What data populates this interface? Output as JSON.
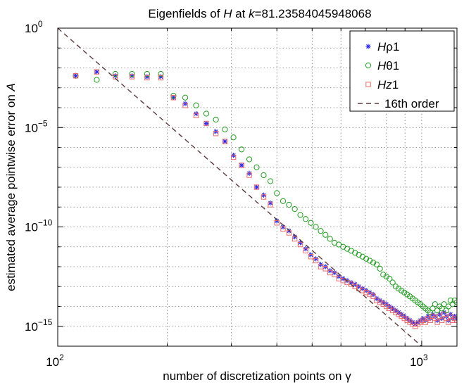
{
  "chart_data": {
    "type": "scatter",
    "title": "Eigenfields of H at k=81.23584045948068",
    "xlabel": "number of discretization points on γ",
    "ylabel": "estimated average pointwise error on A",
    "xscale": "log",
    "yscale": "log",
    "xlim": [
      100,
      1250
    ],
    "ylim": [
      1e-16,
      1
    ],
    "grid": true,
    "x_ticks": [
      {
        "value": 100,
        "base": "10",
        "exp": "2"
      },
      {
        "value": 1000,
        "base": "10",
        "exp": "3"
      }
    ],
    "y_ticks": [
      {
        "value": 1,
        "base": "10",
        "exp": "0"
      },
      {
        "value": 1e-05,
        "base": "10",
        "exp": "−5"
      },
      {
        "value": 1e-10,
        "base": "10",
        "exp": "−10"
      },
      {
        "value": 1e-15,
        "base": "10",
        "exp": "−15"
      }
    ],
    "legend_position": "top-right",
    "series": [
      {
        "name": "Hρ1",
        "italic": "H",
        "rest": "ρ1",
        "marker": "asterisk",
        "color": "#2a2ae6",
        "x": [
          112,
          128,
          144,
          160,
          176,
          192,
          208,
          224,
          240,
          256,
          272,
          288,
          304,
          320,
          336,
          352,
          368,
          384,
          400,
          416,
          432,
          448,
          464,
          480,
          496,
          512,
          528,
          544,
          560,
          576,
          592,
          608,
          624,
          640,
          656,
          672,
          688,
          704,
          720,
          736,
          752,
          768,
          784,
          800,
          816,
          832,
          848,
          864,
          880,
          896,
          912,
          928,
          944,
          960,
          976,
          992,
          1008,
          1024,
          1040,
          1056,
          1072,
          1088,
          1104,
          1120,
          1136,
          1152,
          1168,
          1184,
          1200,
          1216,
          1232,
          1248
        ],
        "y": [
          0.004,
          0.0063,
          0.004,
          0.004,
          0.0036,
          0.0036,
          0.00032,
          0.00016,
          5e-05,
          1.6e-05,
          6.3e-06,
          2e-06,
          4e-07,
          1.26e-07,
          5e-08,
          1e-08,
          4e-09,
          1.6e-09,
          2e-10,
          1e-10,
          6.3e-11,
          3.2e-11,
          1.6e-11,
          7.9e-12,
          4e-12,
          2.5e-12,
          1.3e-12,
          1e-12,
          6.3e-13,
          5e-13,
          3.2e-13,
          2.5e-13,
          2e-13,
          1.6e-13,
          1.3e-13,
          1e-13,
          7.9e-14,
          6.3e-14,
          5e-14,
          4e-14,
          2.5e-14,
          2e-14,
          1.6e-14,
          1.3e-14,
          1e-14,
          8e-15,
          6.3e-15,
          5e-15,
          4e-15,
          3.2e-15,
          2.5e-15,
          2e-15,
          1.6e-15,
          1.3e-15,
          1.6e-15,
          2e-15,
          2.5e-15,
          2e-15,
          3.2e-15,
          2.5e-15,
          4e-15,
          3.2e-15,
          2e-15,
          4e-15,
          2.5e-15,
          5e-15,
          3.2e-15,
          2e-15,
          4e-15,
          2.5e-15,
          3.2e-15,
          2.5e-15
        ]
      },
      {
        "name": "Hθ1",
        "italic": "H",
        "rest": "θ1",
        "marker": "circle",
        "color": "#1f9a1f",
        "x": [
          112,
          128,
          144,
          160,
          176,
          192,
          208,
          224,
          240,
          256,
          272,
          288,
          304,
          320,
          336,
          352,
          368,
          384,
          400,
          416,
          432,
          448,
          464,
          480,
          496,
          512,
          528,
          544,
          560,
          576,
          592,
          608,
          624,
          640,
          656,
          672,
          688,
          704,
          720,
          736,
          752,
          768,
          784,
          800,
          816,
          832,
          848,
          864,
          880,
          896,
          912,
          928,
          944,
          960,
          976,
          992,
          1008,
          1024,
          1040,
          1056,
          1072,
          1088,
          1104,
          1120,
          1136,
          1152,
          1168,
          1184,
          1200,
          1216,
          1232,
          1248
        ],
        "y": [
          0.004,
          0.0025,
          0.005,
          0.005,
          0.005,
          0.005,
          0.0004,
          0.00032,
          0.00013,
          5e-05,
          2.5e-05,
          8e-06,
          3.2e-06,
          7.9e-07,
          2.5e-07,
          1e-07,
          4e-08,
          2e-08,
          5e-09,
          2e-09,
          1.3e-09,
          7.9e-10,
          4e-10,
          2.5e-10,
          1.6e-10,
          1e-10,
          6.3e-11,
          4e-11,
          2.5e-11,
          1.6e-11,
          1.3e-11,
          1e-11,
          7.9e-12,
          6.3e-12,
          5e-12,
          4e-12,
          3.2e-12,
          2.5e-12,
          2e-12,
          1.6e-12,
          1.3e-12,
          7.9e-13,
          4e-13,
          3.2e-13,
          2.5e-13,
          1.6e-13,
          1e-13,
          7.9e-14,
          6.3e-14,
          5e-14,
          4e-14,
          3.2e-14,
          2.5e-14,
          2e-14,
          1.6e-14,
          1.3e-14,
          1e-14,
          7.9e-15,
          6.3e-15,
          5e-15,
          7.9e-15,
          1.3e-14,
          6.3e-15,
          1e-14,
          7.9e-15,
          1.3e-14,
          6.3e-15,
          1e-14,
          2e-14,
          1.3e-14,
          2e-14,
          1.6e-14
        ]
      },
      {
        "name": "Hz1",
        "italic": "Hz",
        "rest": "1",
        "marker": "square",
        "color": "#e86a6a",
        "x": [
          112,
          128,
          144,
          160,
          176,
          192,
          208,
          224,
          240,
          256,
          272,
          288,
          304,
          320,
          336,
          352,
          368,
          384,
          400,
          416,
          432,
          448,
          464,
          480,
          496,
          512,
          528,
          544,
          560,
          576,
          592,
          608,
          624,
          640,
          656,
          672,
          688,
          704,
          720,
          736,
          752,
          768,
          784,
          800,
          816,
          832,
          848,
          864,
          880,
          896,
          912,
          928,
          944,
          960,
          976,
          992,
          1008,
          1024,
          1040,
          1056,
          1072,
          1088,
          1104,
          1120,
          1136,
          1152,
          1168,
          1184,
          1200,
          1216,
          1232,
          1248
        ],
        "y": [
          0.004,
          0.0063,
          0.0036,
          0.0036,
          0.0032,
          0.0032,
          0.00032,
          0.00013,
          4e-05,
          1.6e-05,
          5e-06,
          2e-06,
          3.2e-07,
          1.26e-07,
          4e-08,
          1e-08,
          3.2e-09,
          1.3e-09,
          1.6e-10,
          7.9e-11,
          5e-11,
          2.5e-11,
          1.3e-11,
          6.3e-12,
          3.2e-12,
          2e-12,
          1e-12,
          7.9e-13,
          5e-13,
          4e-13,
          2.5e-13,
          2e-13,
          1.6e-13,
          1.3e-13,
          1e-13,
          7.9e-14,
          6.3e-14,
          5e-14,
          4e-14,
          3.2e-14,
          2e-14,
          1.6e-14,
          1.3e-14,
          1e-14,
          7.9e-15,
          6.3e-15,
          5e-15,
          4e-15,
          3.2e-15,
          2.5e-15,
          2e-15,
          1.6e-15,
          1.3e-15,
          1e-15,
          1.3e-15,
          1.6e-15,
          2e-15,
          1.6e-15,
          2.5e-15,
          2e-15,
          3.2e-15,
          2.5e-15,
          1.6e-15,
          3.2e-15,
          2e-15,
          4e-15,
          2.5e-15,
          1.6e-15,
          3.2e-15,
          2e-15,
          2.5e-15,
          2e-15
        ]
      },
      {
        "name": "16th order",
        "italic": "",
        "rest": "16th order",
        "marker": "dashed-line",
        "color": "#5b3a3a",
        "x": [
          100,
          1000
        ],
        "y": [
          1,
          1e-16
        ]
      }
    ]
  }
}
